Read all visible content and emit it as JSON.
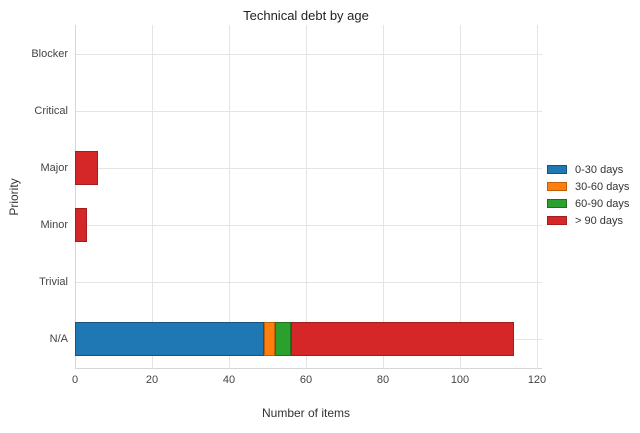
{
  "title": "Technical debt by age",
  "chart_data": {
    "type": "bar",
    "orientation": "horizontal",
    "stacked": true,
    "title": "Technical debt by age",
    "xlabel": "Number of items",
    "ylabel": "Priority",
    "categories": [
      "Blocker",
      "Critical",
      "Major",
      "Minor",
      "Trivial",
      "N/A"
    ],
    "series": [
      {
        "name": "0-30 days",
        "color": "#1f77b4",
        "border_color": "#16537d",
        "values": [
          0,
          0,
          0,
          0,
          0,
          49
        ]
      },
      {
        "name": "30-60 days",
        "color": "#ff7f0e",
        "border_color": "#c05f06",
        "values": [
          0,
          0,
          0,
          0,
          0,
          3
        ]
      },
      {
        "name": "60-90 days",
        "color": "#2ca02c",
        "border_color": "#1e711e",
        "values": [
          0,
          0,
          0,
          0,
          0,
          4
        ]
      },
      {
        "name": "> 90 days",
        "color": "#d62728",
        "border_color": "#a31d1e",
        "values": [
          0,
          0,
          6,
          3,
          0,
          58
        ]
      }
    ],
    "xlim": [
      0,
      120
    ],
    "xticks": [
      0,
      20,
      40,
      60,
      80,
      100,
      120
    ],
    "grid": true,
    "legend_position": "right"
  },
  "colors": {
    "grid": "#e4e4e4",
    "axis": "#d6d6d6",
    "tick_text": "#444444",
    "axis_title_text": "#333333",
    "title_text": "#222222",
    "background": "#ffffff"
  }
}
